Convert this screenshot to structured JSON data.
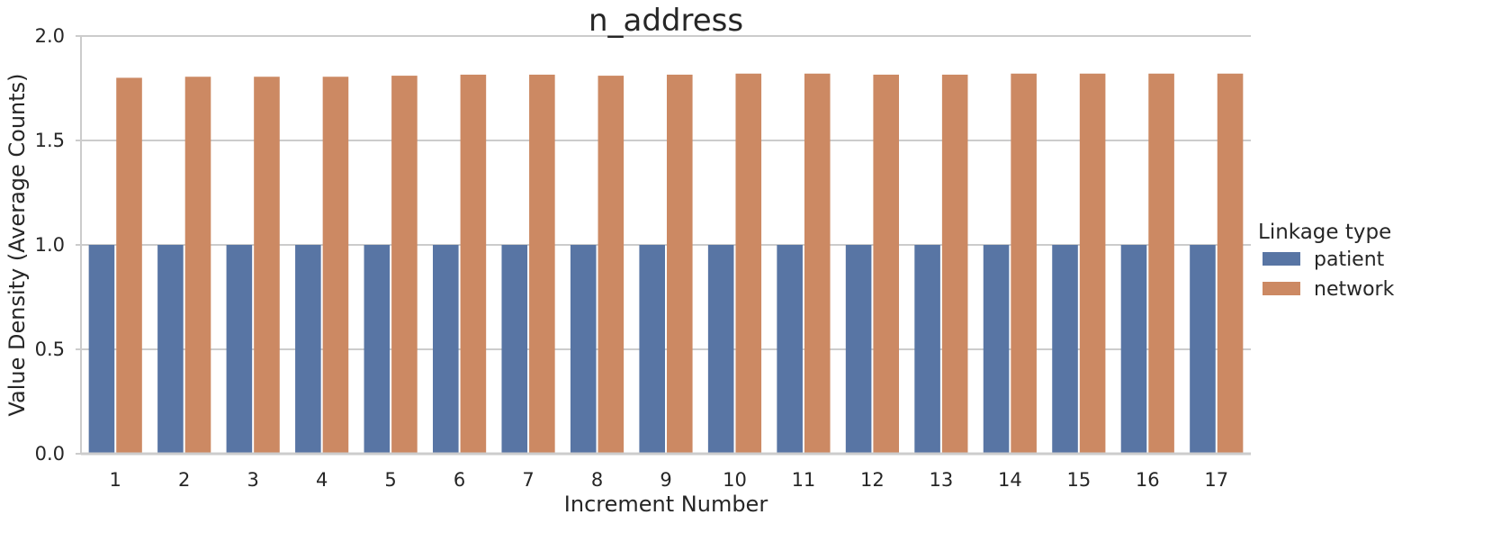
{
  "chart_data": {
    "type": "bar",
    "title": "n_address",
    "xlabel": "Increment Number",
    "ylabel": "Value Density (Average Counts)",
    "categories": [
      "1",
      "2",
      "3",
      "4",
      "5",
      "6",
      "7",
      "8",
      "9",
      "10",
      "11",
      "12",
      "13",
      "14",
      "15",
      "16",
      "17"
    ],
    "series": [
      {
        "name": "patient",
        "color": "#5875a4",
        "values": [
          1,
          1,
          1,
          1,
          1,
          1,
          1,
          1,
          1,
          1,
          1,
          1,
          1,
          1,
          1,
          1,
          1
        ]
      },
      {
        "name": "network",
        "color": "#cc8963",
        "values": [
          1.8,
          1.805,
          1.805,
          1.805,
          1.81,
          1.815,
          1.815,
          1.81,
          1.815,
          1.82,
          1.82,
          1.815,
          1.815,
          1.82,
          1.82,
          1.82,
          1.82
        ]
      }
    ],
    "ylim": [
      0,
      2.0
    ],
    "yticks": [
      "0.0",
      "0.5",
      "1.0",
      "1.5",
      "2.0"
    ],
    "grid": "horizontal",
    "legend": {
      "title": "Linkage type",
      "placement": "right"
    }
  }
}
